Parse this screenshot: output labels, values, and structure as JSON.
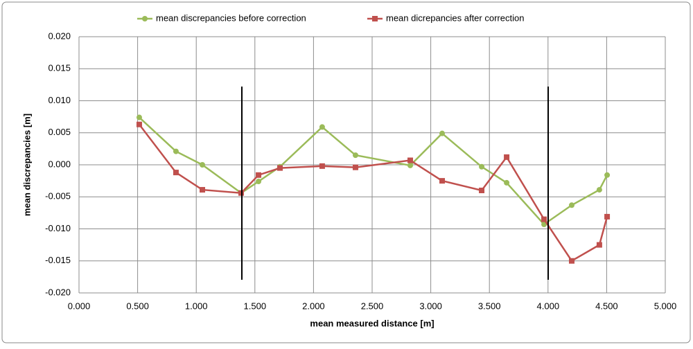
{
  "chart_data": {
    "type": "line",
    "x_label": "mean measured distance [m]",
    "y_label": "mean discrepancies [m]",
    "series": [
      {
        "name": "mean discrepancies before correction",
        "color": "#9bbb59",
        "marker": "circle",
        "x": [
          0.514,
          0.827,
          1.052,
          1.383,
          1.531,
          1.714,
          2.074,
          2.358,
          2.825,
          3.097,
          3.434,
          3.647,
          3.966,
          4.202,
          4.438,
          4.504
        ],
        "values": [
          0.0074,
          0.0021,
          0.0,
          -0.0044,
          -0.0026,
          -0.0003,
          0.0059,
          0.0015,
          -0.0001,
          0.0049,
          -0.0003,
          -0.0028,
          -0.0093,
          -0.0063,
          -0.0039,
          -0.0016
        ]
      },
      {
        "name": "mean dicrepancies after correction",
        "color": "#c0504d",
        "marker": "square",
        "x": [
          0.514,
          0.827,
          1.052,
          1.383,
          1.531,
          1.714,
          2.074,
          2.358,
          2.825,
          3.097,
          3.434,
          3.647,
          3.966,
          4.202,
          4.438,
          4.504
        ],
        "values": [
          0.0063,
          -0.0012,
          -0.0039,
          -0.0044,
          -0.0016,
          -0.0005,
          -0.0002,
          -0.0004,
          0.0007,
          -0.0025,
          -0.004,
          0.0012,
          -0.0085,
          -0.015,
          -0.0125,
          -0.0081
        ]
      }
    ],
    "xlim": [
      0,
      5
    ],
    "xticks": [
      {
        "value": 0,
        "label": "0.000"
      },
      {
        "value": 0.5,
        "label": "0.500"
      },
      {
        "value": 1,
        "label": "1.000"
      },
      {
        "value": 1.5,
        "label": "1.500"
      },
      {
        "value": 2,
        "label": "2.000"
      },
      {
        "value": 2.5,
        "label": "2.500"
      },
      {
        "value": 3,
        "label": "3.000"
      },
      {
        "value": 3.5,
        "label": "3.500"
      },
      {
        "value": 4,
        "label": "4.000"
      },
      {
        "value": 4.5,
        "label": "4.500"
      },
      {
        "value": 5,
        "label": "5.000"
      }
    ],
    "ylim": [
      -0.02,
      0.02
    ],
    "yticks": [
      {
        "value": -0.02,
        "label": "-0.020"
      },
      {
        "value": -0.015,
        "label": "-0.015"
      },
      {
        "value": -0.01,
        "label": "-0.010"
      },
      {
        "value": -0.005,
        "label": "-0.005"
      },
      {
        "value": 0,
        "label": "0.000"
      },
      {
        "value": 0.005,
        "label": "0.005"
      },
      {
        "value": 0.01,
        "label": "0.010"
      },
      {
        "value": 0.015,
        "label": "0.015"
      },
      {
        "value": 0.02,
        "label": "0.020"
      }
    ],
    "grid": true,
    "legend": "top"
  }
}
